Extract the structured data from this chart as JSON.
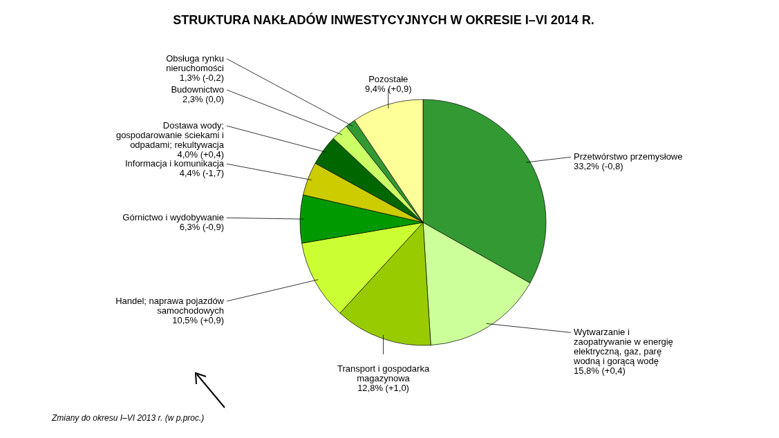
{
  "chart_data": {
    "type": "pie",
    "title": "STRUKTURA NAKŁADÓW INWESTYCYJNYCH W OKRESIE I–VI 2014 R.",
    "categories": [
      "Przetwórstwo przemysłowe",
      "Wytwarzanie i zaopatrywanie w energię elektryczną, gaz, parę wodną i gorącą wodę",
      "Transport i gospodarka magazynowa",
      "Handel; naprawa pojazdów samochodowych",
      "Górnictwo i wydobywanie",
      "Informacja i komunikacja",
      "Dostawa wody; gospodarowanie ściekami i odpadami; rekultywacja",
      "Budownictwo",
      "Obsługa rynku nieruchomości",
      "Pozostałe"
    ],
    "values": [
      33.2,
      15.8,
      12.8,
      10.5,
      6.3,
      4.4,
      4.0,
      2.3,
      1.3,
      9.4
    ],
    "value_labels": [
      "33,2% (-0,8)",
      "15,8% (+0,4)",
      "12,8% (+1,0)",
      "10,5% (+0,9)",
      "6,3% (-0,9)",
      "4,4% (-1,7)",
      "4,0% (+0,4)",
      "2,3% (0,0)",
      "1,3% (-0,2)",
      "9,4% (+0,9)"
    ],
    "colors": [
      "#339933",
      "#ccff99",
      "#99cc00",
      "#ccff33",
      "#009900",
      "#cccc00",
      "#006600",
      "#ccff66",
      "#339933",
      "#ffff99"
    ],
    "annotations": [
      "Zmiany do okresu  I–VI 2013 r. (w p.proc.)"
    ]
  }
}
